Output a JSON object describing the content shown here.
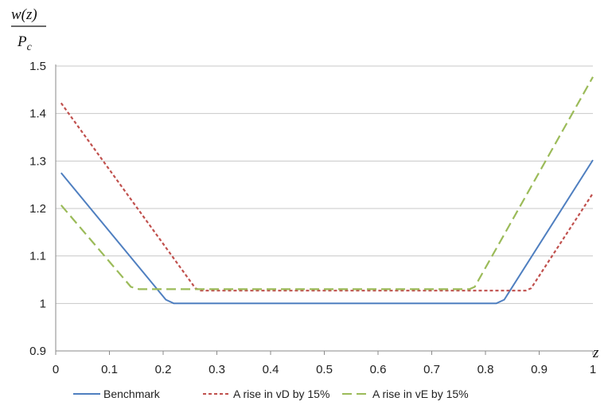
{
  "chart_data": {
    "type": "line",
    "title": "",
    "ylabel_numerator": "w(z)",
    "ylabel_denominator": "P",
    "ylabel_denominator_sub": "c",
    "xlabel": "z",
    "xlim": [
      0,
      1
    ],
    "ylim": [
      0.9,
      1.5
    ],
    "x_ticks": [
      "0",
      "0.1",
      "0.2",
      "0.3",
      "0.4",
      "0.5",
      "0.6",
      "0.7",
      "0.8",
      "0.9",
      "1"
    ],
    "y_ticks": [
      "0.9",
      "1",
      "1.1",
      "1.2",
      "1.3",
      "1.4",
      "1.5"
    ],
    "grid": "horizontal",
    "legend_position": "bottom",
    "series": [
      {
        "name": "Benchmark",
        "color": "#4f7fc0",
        "dash": "solid",
        "x": [
          0.01,
          0.205,
          0.22,
          0.82,
          0.835,
          1.0
        ],
        "y": [
          1.275,
          1.008,
          1.0,
          1.0,
          1.008,
          1.302
        ]
      },
      {
        "name": "A rise in vD by 15%",
        "color": "#c0504d",
        "dash": "short",
        "x": [
          0.01,
          0.26,
          0.27,
          0.875,
          0.885,
          1.0
        ],
        "y": [
          1.422,
          1.032,
          1.027,
          1.027,
          1.032,
          1.232
        ]
      },
      {
        "name": "A rise in vE by 15%",
        "color": "#9bbb59",
        "dash": "long",
        "x": [
          0.01,
          0.14,
          0.155,
          0.77,
          0.78,
          1.0
        ],
        "y": [
          1.207,
          1.035,
          1.03,
          1.03,
          1.035,
          1.477
        ]
      }
    ]
  }
}
